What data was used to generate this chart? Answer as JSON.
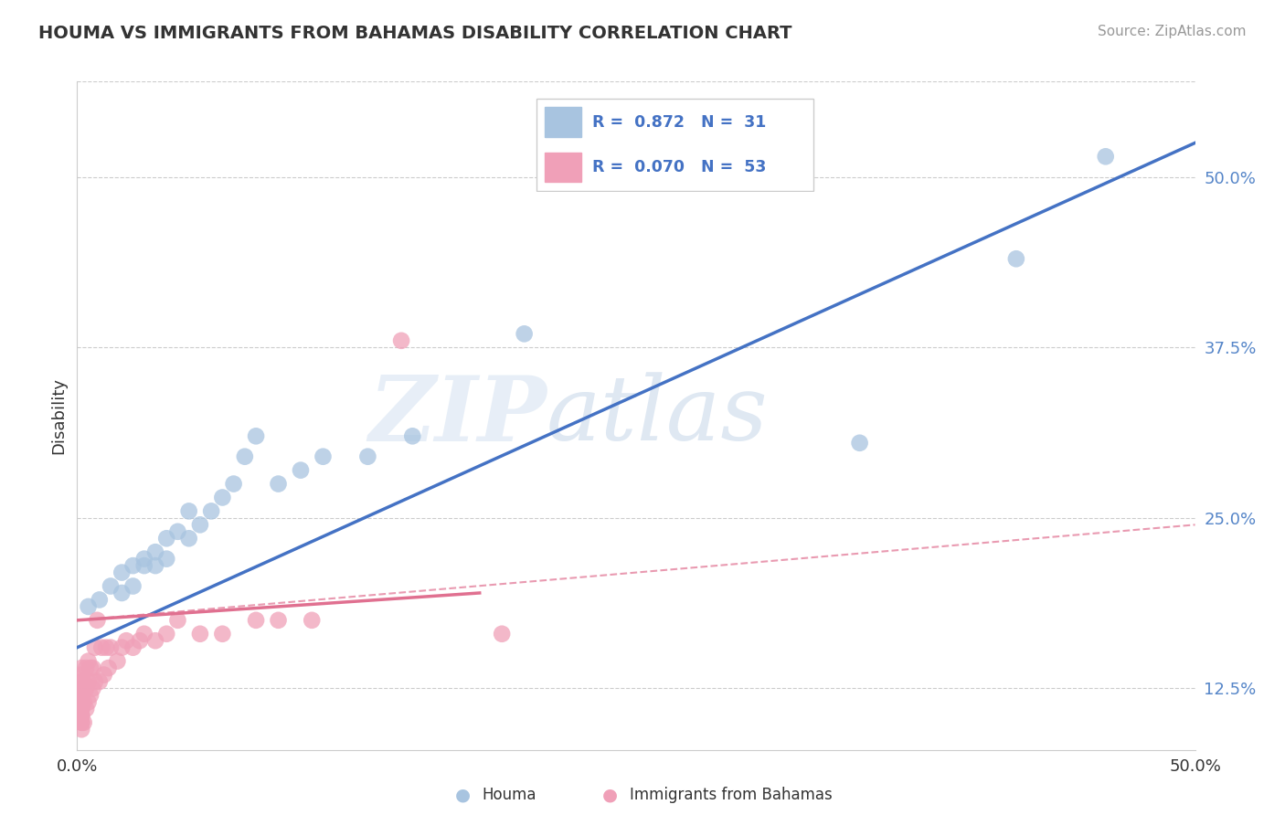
{
  "title": "HOUMA VS IMMIGRANTS FROM BAHAMAS DISABILITY CORRELATION CHART",
  "source": "Source: ZipAtlas.com",
  "ylabel": "Disability",
  "ytick_labels": [
    "12.5%",
    "25.0%",
    "37.5%",
    "50.0%"
  ],
  "ytick_vals": [
    0.125,
    0.25,
    0.375,
    0.5
  ],
  "xtick_labels": [
    "0.0%",
    "50.0%"
  ],
  "xtick_vals": [
    0.0,
    0.5
  ],
  "xlim": [
    0.0,
    0.5
  ],
  "ylim": [
    0.08,
    0.57
  ],
  "houma_color": "#a8c4e0",
  "bahamas_color": "#f0a0b8",
  "houma_line_color": "#4472c4",
  "bahamas_line_color": "#e07090",
  "watermark_zip": "ZIP",
  "watermark_atlas": "atlas",
  "watermark_color": "#d0e4f0",
  "legend_items": [
    {
      "label": "R =  0.872   N =  31",
      "color": "#a8c4e0"
    },
    {
      "label": "R =  0.070   N =  53",
      "color": "#f0a0b8"
    }
  ],
  "bottom_legend": [
    {
      "label": "Houma",
      "color": "#a8c4e0"
    },
    {
      "label": "Immigrants from Bahamas",
      "color": "#f0a0b8"
    }
  ],
  "houma_x": [
    0.005,
    0.01,
    0.015,
    0.02,
    0.02,
    0.025,
    0.025,
    0.03,
    0.03,
    0.035,
    0.035,
    0.04,
    0.04,
    0.045,
    0.05,
    0.05,
    0.055,
    0.06,
    0.065,
    0.07,
    0.075,
    0.08,
    0.09,
    0.1,
    0.11,
    0.13,
    0.15,
    0.2,
    0.35,
    0.42,
    0.46
  ],
  "houma_y": [
    0.185,
    0.19,
    0.2,
    0.195,
    0.21,
    0.2,
    0.215,
    0.215,
    0.22,
    0.215,
    0.225,
    0.235,
    0.22,
    0.24,
    0.255,
    0.235,
    0.245,
    0.255,
    0.265,
    0.275,
    0.295,
    0.31,
    0.275,
    0.285,
    0.295,
    0.295,
    0.31,
    0.385,
    0.305,
    0.44,
    0.515
  ],
  "bahamas_x": [
    0.002,
    0.002,
    0.002,
    0.002,
    0.002,
    0.002,
    0.002,
    0.002,
    0.002,
    0.002,
    0.002,
    0.002,
    0.002,
    0.002,
    0.002,
    0.003,
    0.003,
    0.003,
    0.004,
    0.004,
    0.004,
    0.005,
    0.005,
    0.005,
    0.006,
    0.006,
    0.007,
    0.007,
    0.008,
    0.008,
    0.009,
    0.01,
    0.011,
    0.012,
    0.013,
    0.014,
    0.015,
    0.018,
    0.02,
    0.022,
    0.025,
    0.028,
    0.03,
    0.035,
    0.04,
    0.045,
    0.055,
    0.065,
    0.08,
    0.09,
    0.105,
    0.145,
    0.19
  ],
  "bahamas_y": [
    0.095,
    0.1,
    0.1,
    0.105,
    0.105,
    0.11,
    0.11,
    0.115,
    0.12,
    0.12,
    0.125,
    0.125,
    0.13,
    0.135,
    0.14,
    0.1,
    0.115,
    0.13,
    0.11,
    0.125,
    0.14,
    0.115,
    0.13,
    0.145,
    0.12,
    0.14,
    0.125,
    0.14,
    0.13,
    0.155,
    0.175,
    0.13,
    0.155,
    0.135,
    0.155,
    0.14,
    0.155,
    0.145,
    0.155,
    0.16,
    0.155,
    0.16,
    0.165,
    0.16,
    0.165,
    0.175,
    0.165,
    0.165,
    0.175,
    0.175,
    0.175,
    0.38,
    0.165
  ],
  "houma_line_x": [
    0.0,
    0.5
  ],
  "houma_line_y": [
    0.155,
    0.525
  ],
  "bahamas_solid_line_x": [
    0.0,
    0.18
  ],
  "bahamas_solid_line_y": [
    0.175,
    0.195
  ],
  "bahamas_dash_line_x": [
    0.0,
    0.5
  ],
  "bahamas_dash_line_y": [
    0.175,
    0.245
  ]
}
